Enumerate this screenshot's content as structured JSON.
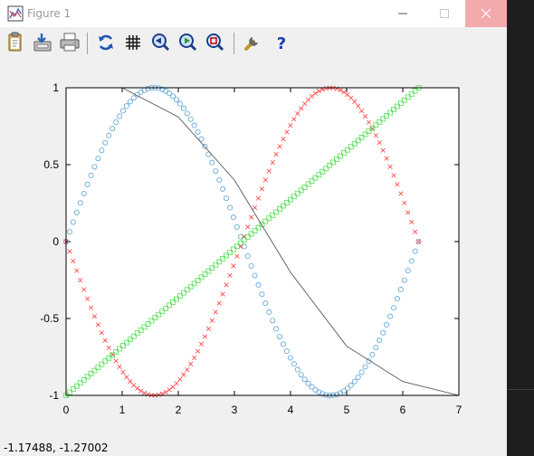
{
  "window": {
    "title": "Figure 1"
  },
  "toolbar": [
    {
      "name": "copy-icon"
    },
    {
      "name": "export-icon"
    },
    {
      "name": "print-icon"
    },
    {
      "name": "replot-icon"
    },
    {
      "name": "grid-icon"
    },
    {
      "name": "zoom-previous-icon"
    },
    {
      "name": "zoom-next-icon"
    },
    {
      "name": "autoscale-icon"
    },
    {
      "name": "options-icon"
    },
    {
      "name": "help-icon"
    }
  ],
  "status": {
    "coords": "-1.17488, -1.27002"
  },
  "chart_data": {
    "type": "line",
    "xlim": [
      0,
      7
    ],
    "ylim": [
      -1,
      1
    ],
    "x_ticks": [
      "0",
      "1",
      "2",
      "3",
      "4",
      "5",
      "6",
      "7"
    ],
    "y_ticks": [
      "1",
      "0.5",
      "0",
      "-0.5",
      "-1"
    ],
    "grid": false,
    "series": [
      {
        "function": "sin(x)",
        "x_range": [
          0,
          6.2832
        ],
        "points": 100,
        "marker": "circle",
        "color": "#5aa2d4"
      },
      {
        "function": "-sin(x)",
        "x_range": [
          0,
          6.2832
        ],
        "points": 100,
        "marker": "cross",
        "color": "#ff3b3b"
      },
      {
        "function": "line",
        "x_range": [
          0,
          6.2832
        ],
        "y_range": [
          -1,
          1
        ],
        "points": 100,
        "marker": "square",
        "color": "#55e055"
      },
      {
        "x": [
          1,
          2,
          3,
          4,
          5,
          6,
          7
        ],
        "y": [
          1,
          0.81,
          0.4,
          -0.2,
          -0.68,
          -0.91,
          -1
        ],
        "marker": "none",
        "color": "#555555"
      }
    ]
  }
}
